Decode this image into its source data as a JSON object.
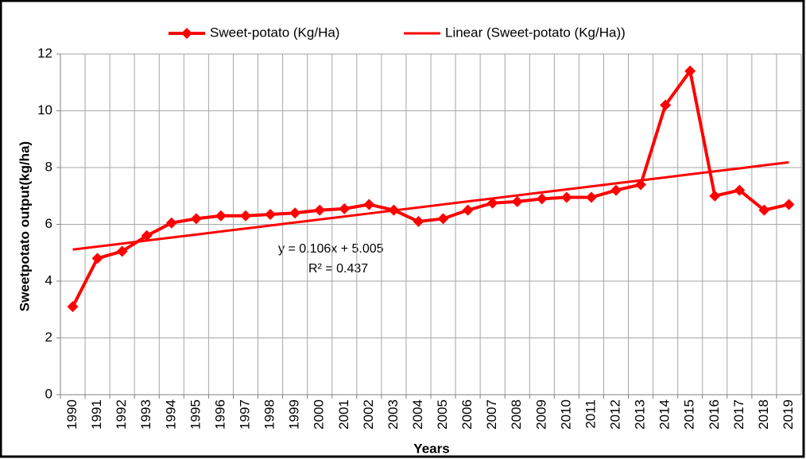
{
  "chart_data": {
    "type": "line",
    "categories": [
      "1990",
      "1991",
      "1992",
      "1993",
      "1994",
      "1995",
      "1996",
      "1997",
      "1998",
      "1999",
      "2000",
      "2001",
      "2002",
      "2003",
      "2004",
      "2005",
      "2006",
      "2007",
      "2008",
      "2009",
      "2010",
      "2011",
      "2012",
      "2013",
      "2014",
      "2015",
      "2016",
      "2017",
      "2018",
      "2019"
    ],
    "series": [
      {
        "name": "Sweet-potato (Kg/Ha)",
        "color": "#ff0000",
        "marker": "diamond",
        "values": [
          3.1,
          4.8,
          5.05,
          5.6,
          6.05,
          6.2,
          6.3,
          6.3,
          6.35,
          6.4,
          6.5,
          6.55,
          6.7,
          6.5,
          6.1,
          6.2,
          6.5,
          6.75,
          6.8,
          6.9,
          6.95,
          6.95,
          7.2,
          7.4,
          10.2,
          11.4,
          7.0,
          7.2,
          6.5,
          6.7
        ]
      },
      {
        "name": "Linear (Sweet-potato (Kg/Ha))",
        "color": "#ff0000",
        "values": [
          5.111,
          5.217,
          5.323,
          5.429,
          5.535,
          5.641,
          5.747,
          5.853,
          5.959,
          6.065,
          6.171,
          6.277,
          6.383,
          6.489,
          6.595,
          6.701,
          6.807,
          6.913,
          7.019,
          7.125,
          7.231,
          7.337,
          7.443,
          7.549,
          7.655,
          7.761,
          7.867,
          7.973,
          8.079,
          8.185
        ]
      }
    ],
    "annotations": [
      "y = 0.106x + 5.005",
      "R² = 0.437"
    ],
    "ylabel": "Sweetpotato output(kg/ha)",
    "xlabel": "Years",
    "ylim": [
      0,
      12
    ],
    "yticks": [
      0,
      2,
      4,
      6,
      8,
      10,
      12
    ],
    "grid": true,
    "legend": "top"
  }
}
